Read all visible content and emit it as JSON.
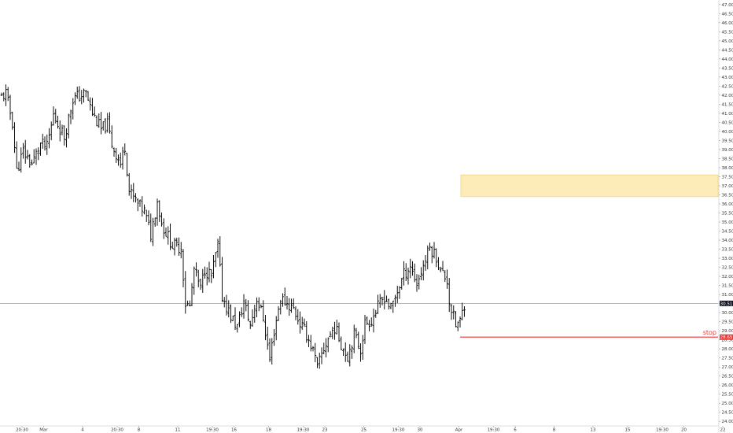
{
  "chart_data": {
    "type": "ohlc",
    "title": "",
    "xlabel": "",
    "ylabel": "",
    "ylim": [
      23.75,
      47.25
    ],
    "y_ticks": [
      "47.00",
      "46.50",
      "46.00",
      "45.50",
      "45.00",
      "44.50",
      "44.00",
      "43.50",
      "43.00",
      "42.50",
      "42.00",
      "41.50",
      "41.00",
      "40.50",
      "40.00",
      "39.50",
      "39.00",
      "38.50",
      "38.00",
      "37.50",
      "37.00",
      "36.50",
      "36.00",
      "35.50",
      "35.00",
      "34.50",
      "34.00",
      "33.50",
      "33.00",
      "32.50",
      "32.00",
      "31.50",
      "31.00",
      "30.50",
      "30.00",
      "29.50",
      "29.00",
      "28.50",
      "28.00",
      "27.50",
      "27.00",
      "26.50",
      "26.00",
      "25.50",
      "25.00",
      "24.50",
      "24.00"
    ],
    "x_ticks": [
      {
        "bar": 4,
        "label": "20:30"
      },
      {
        "bar": 14,
        "label": "Mar"
      },
      {
        "bar": 32,
        "label": "4"
      },
      {
        "bar": 48,
        "label": "20:30"
      },
      {
        "bar": 58,
        "label": "8"
      },
      {
        "bar": 76,
        "label": "11"
      },
      {
        "bar": 92,
        "label": "19:30"
      },
      {
        "bar": 102,
        "label": "16"
      },
      {
        "bar": 118,
        "label": "18"
      },
      {
        "bar": 134,
        "label": "19:30"
      },
      {
        "bar": 144,
        "label": "23"
      },
      {
        "bar": 162,
        "label": "25"
      },
      {
        "bar": 178,
        "label": "19:30"
      },
      {
        "bar": 188,
        "label": "30"
      },
      {
        "bar": 206,
        "label": "Apr"
      },
      {
        "bar": 222,
        "label": "19:30"
      },
      {
        "bar": 232,
        "label": "6"
      },
      {
        "bar": 250,
        "label": "8"
      },
      {
        "bar": 268,
        "label": "13"
      },
      {
        "bar": 284,
        "label": "15"
      },
      {
        "bar": 300,
        "label": "19:30"
      },
      {
        "bar": 310,
        "label": "20"
      },
      {
        "bar": 328,
        "label": "22"
      }
    ],
    "anchors": [
      {
        "bar": 0,
        "price": 41.9
      },
      {
        "bar": 2,
        "price": 42.1
      },
      {
        "bar": 5,
        "price": 40.5
      },
      {
        "bar": 7,
        "price": 37.8
      },
      {
        "bar": 10,
        "price": 38.9
      },
      {
        "bar": 14,
        "price": 38.2
      },
      {
        "bar": 18,
        "price": 39.3
      },
      {
        "bar": 21,
        "price": 39.1
      },
      {
        "bar": 24,
        "price": 40.9
      },
      {
        "bar": 29,
        "price": 39.7
      },
      {
        "bar": 33,
        "price": 41.8
      },
      {
        "bar": 39,
        "price": 42.1
      },
      {
        "bar": 42,
        "price": 41.0
      },
      {
        "bar": 46,
        "price": 40.1
      },
      {
        "bar": 49,
        "price": 40.4
      },
      {
        "bar": 51,
        "price": 39.3
      },
      {
        "bar": 55,
        "price": 38.2
      },
      {
        "bar": 57,
        "price": 39.2
      },
      {
        "bar": 59,
        "price": 36.7
      },
      {
        "bar": 63,
        "price": 36.0
      },
      {
        "bar": 66,
        "price": 35.6
      },
      {
        "bar": 69,
        "price": 34.3
      },
      {
        "bar": 72,
        "price": 36.2
      },
      {
        "bar": 74,
        "price": 34.9
      },
      {
        "bar": 79,
        "price": 33.7
      },
      {
        "bar": 83,
        "price": 33.6
      },
      {
        "bar": 85,
        "price": 30.5
      },
      {
        "bar": 87,
        "price": 30.3
      },
      {
        "bar": 89,
        "price": 32.4
      },
      {
        "bar": 92,
        "price": 31.3
      },
      {
        "bar": 94,
        "price": 32.4
      },
      {
        "bar": 97,
        "price": 32.0
      },
      {
        "bar": 100,
        "price": 33.7
      },
      {
        "bar": 102,
        "price": 30.9
      },
      {
        "bar": 106,
        "price": 29.8
      },
      {
        "bar": 109,
        "price": 29.2
      },
      {
        "bar": 112,
        "price": 30.6
      },
      {
        "bar": 115,
        "price": 29.3
      },
      {
        "bar": 118,
        "price": 30.8
      },
      {
        "bar": 121,
        "price": 29.7
      },
      {
        "bar": 124,
        "price": 27.4
      },
      {
        "bar": 126,
        "price": 29.0
      },
      {
        "bar": 129,
        "price": 30.8
      },
      {
        "bar": 132,
        "price": 30.5
      },
      {
        "bar": 135,
        "price": 30.2
      },
      {
        "bar": 138,
        "price": 29.4
      },
      {
        "bar": 141,
        "price": 28.8
      },
      {
        "bar": 144,
        "price": 27.9
      },
      {
        "bar": 146,
        "price": 26.9
      },
      {
        "bar": 148,
        "price": 27.7
      },
      {
        "bar": 151,
        "price": 28.6
      },
      {
        "bar": 154,
        "price": 29.2
      },
      {
        "bar": 157,
        "price": 28.3
      },
      {
        "bar": 160,
        "price": 27.6
      },
      {
        "bar": 163,
        "price": 28.8
      },
      {
        "bar": 166,
        "price": 28.0
      },
      {
        "bar": 168,
        "price": 29.4
      },
      {
        "bar": 171,
        "price": 29.6
      },
      {
        "bar": 174,
        "price": 30.3
      },
      {
        "bar": 177,
        "price": 30.9
      },
      {
        "bar": 180,
        "price": 30.2
      },
      {
        "bar": 183,
        "price": 31.2
      },
      {
        "bar": 186,
        "price": 32.1
      },
      {
        "bar": 189,
        "price": 32.6
      },
      {
        "bar": 192,
        "price": 31.6
      },
      {
        "bar": 195,
        "price": 32.6
      },
      {
        "bar": 198,
        "price": 33.6
      },
      {
        "bar": 201,
        "price": 33.1
      },
      {
        "bar": 203,
        "price": 32.3
      },
      {
        "bar": 206,
        "price": 31.8
      },
      {
        "bar": 207,
        "price": 30.6
      },
      {
        "bar": 210,
        "price": 29.3
      },
      {
        "bar": 212,
        "price": 29.5
      },
      {
        "bar": 214,
        "price": 30.5
      }
    ],
    "current_price": {
      "value": 30.51,
      "label": "30.51"
    },
    "stop": {
      "value": 28.65,
      "label": "28.65",
      "text": "stop"
    },
    "zone": {
      "low": 36.4,
      "high": 37.6
    },
    "colors": {
      "bars": "#111111",
      "stop": "#e53935",
      "zone_fill": "#fdebb8",
      "zone_border": "#f3d58a",
      "current_line": "#9e9e9e",
      "current_tag": "#131722",
      "axis_text": "#333333",
      "background": "#ffffff"
    }
  }
}
